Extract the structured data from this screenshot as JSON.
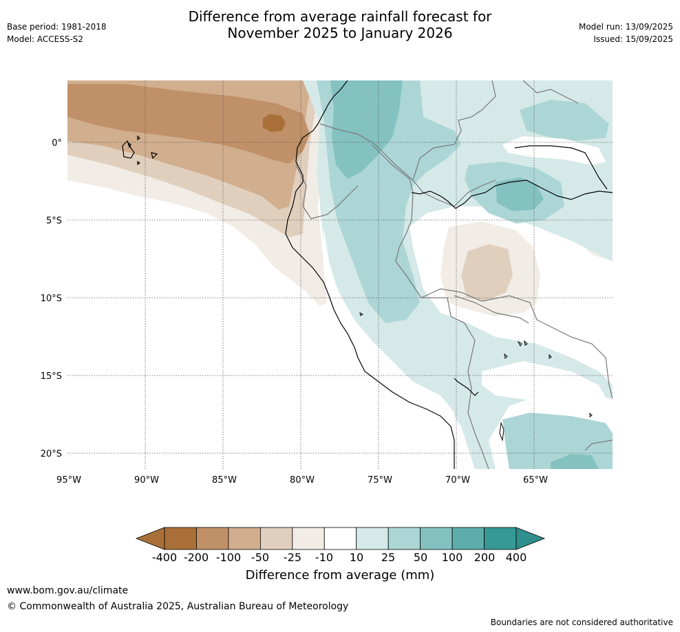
{
  "title": {
    "line1": "Difference from average rainfall forecast for",
    "line2": "November 2025 to January 2026"
  },
  "meta_left": {
    "base_period": "Base period: 1981-2018",
    "model": "Model: ACCESS-S2"
  },
  "meta_right": {
    "model_run": "Model run: 13/09/2025",
    "issued": "Issued: 15/09/2025"
  },
  "map": {
    "lon_labels": [
      "95°W",
      "90°W",
      "85°W",
      "80°W",
      "75°W",
      "70°W",
      "65°W"
    ],
    "lat_labels": [
      "0°",
      "5°S",
      "10°S",
      "15°S",
      "20°S"
    ],
    "lon_values": [
      -95,
      -90,
      -85,
      -80,
      -75,
      -70,
      -65
    ],
    "lat_values": [
      0,
      -5,
      -10,
      -15,
      -20
    ],
    "lon_range": [
      -95,
      -60
    ],
    "lat_range": [
      -21,
      4
    ]
  },
  "colorbar": {
    "title": "Difference from average (mm)",
    "tick_labels": [
      "-400",
      "-200",
      "-100",
      "-50",
      "-25",
      "-10",
      "10",
      "25",
      "50",
      "100",
      "200",
      "400"
    ],
    "colors": [
      "#a87038",
      "#c09068",
      "#d0ae8e",
      "#e1cfbd",
      "#f1ece6",
      "#ffffff",
      "#d5e9e8",
      "#acd6d5",
      "#84c2c1",
      "#5dadac",
      "#369996"
    ],
    "extend_low_color": "#a87038",
    "extend_high_color": "#2f8f8c"
  },
  "footer": {
    "url": "www.bom.gov.au/climate",
    "copyright": "© Commonwealth of Australia 2025, Australian Bureau of Meteorology",
    "disclaimer": "Boundaries are not considered authoritative"
  }
}
